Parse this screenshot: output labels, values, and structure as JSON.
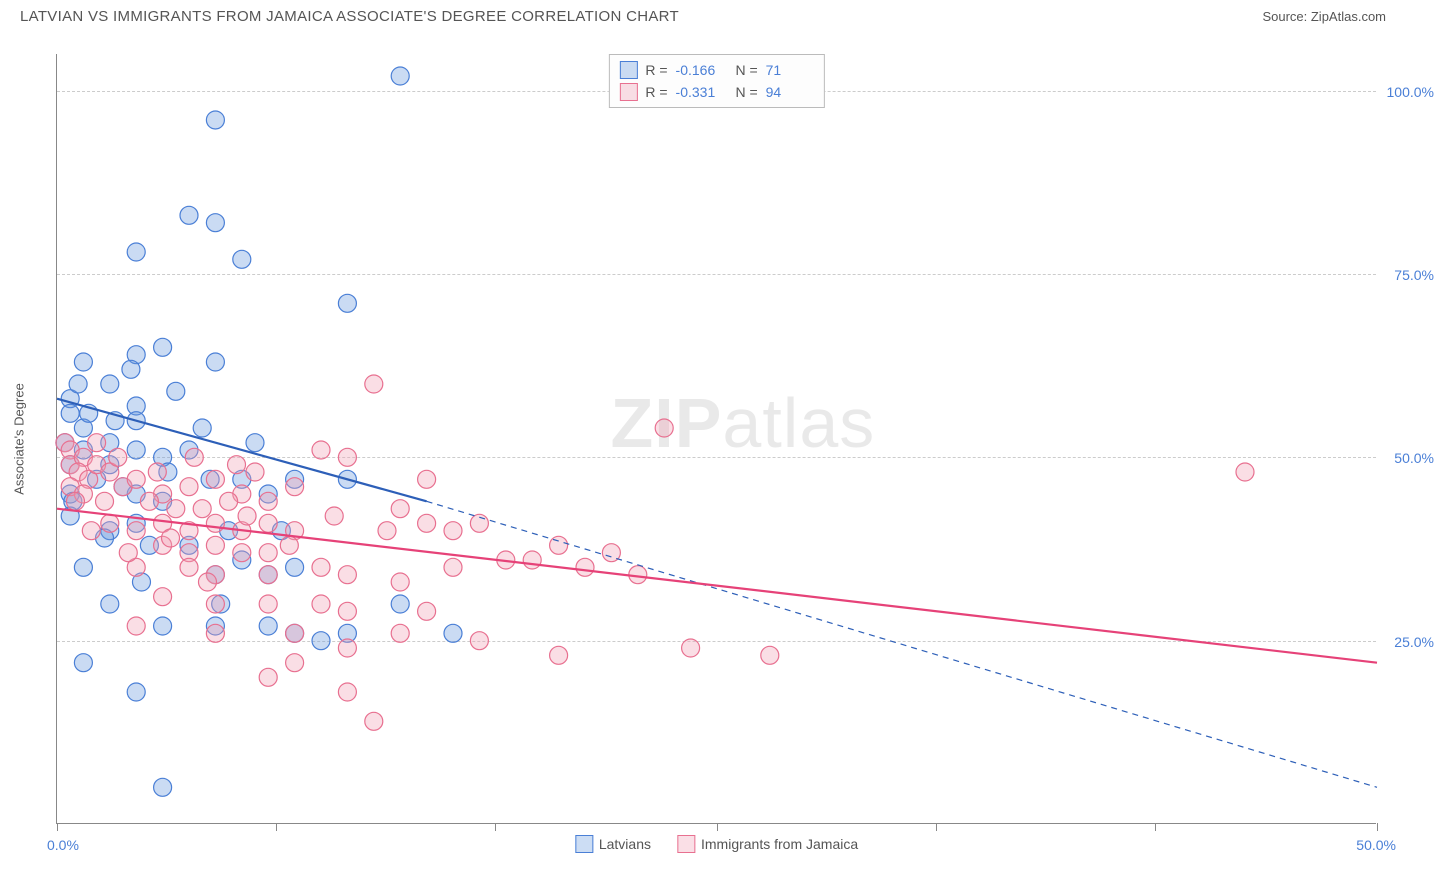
{
  "header": {
    "title": "LATVIAN VS IMMIGRANTS FROM JAMAICA ASSOCIATE'S DEGREE CORRELATION CHART",
    "source": "Source: ZipAtlas.com"
  },
  "watermark": {
    "pre": "ZIP",
    "post": "atlas"
  },
  "chart": {
    "type": "scatter",
    "background_color": "#ffffff",
    "grid_color": "#cccccc",
    "axis_color": "#888888",
    "ylabel": "Associate's Degree",
    "label_fontsize": 13,
    "xlim": [
      0,
      50
    ],
    "ylim": [
      0,
      105
    ],
    "yticks": [
      25,
      50,
      75,
      100
    ],
    "ytick_labels": [
      "25.0%",
      "50.0%",
      "75.0%",
      "100.0%"
    ],
    "xtick_positions": [
      0,
      8.3,
      16.6,
      25,
      33.3,
      41.6,
      50
    ],
    "xtick_label_left": "0.0%",
    "xtick_label_right": "50.0%",
    "tick_label_color": "#4a7fd6",
    "marker_radius": 9,
    "marker_stroke_width": 1.2,
    "marker_fill_opacity": 0.35,
    "line_width": 2.2,
    "series": [
      {
        "name": "Latvians",
        "color": "#6699dd",
        "stroke": "#4a7fd6",
        "line_color": "#2d5fb8",
        "r": "-0.166",
        "n": "71",
        "regression": {
          "x1": 0,
          "y1": 58,
          "x2": 14,
          "y2": 44,
          "dash_x2": 50,
          "dash_y2": 5
        },
        "points": [
          [
            13,
            102
          ],
          [
            6,
            96
          ],
          [
            5,
            83
          ],
          [
            6,
            82
          ],
          [
            3,
            78
          ],
          [
            7,
            77
          ],
          [
            11,
            71
          ],
          [
            1,
            63
          ],
          [
            3,
            64
          ],
          [
            4,
            65
          ],
          [
            6,
            63
          ],
          [
            2,
            60
          ],
          [
            0.5,
            58
          ],
          [
            0.5,
            56
          ],
          [
            3,
            57
          ],
          [
            1,
            54
          ],
          [
            3,
            55
          ],
          [
            1,
            51
          ],
          [
            3,
            51
          ],
          [
            5,
            51
          ],
          [
            0.5,
            49
          ],
          [
            2,
            49
          ],
          [
            7,
            47
          ],
          [
            9,
            47
          ],
          [
            0.5,
            45
          ],
          [
            3,
            45
          ],
          [
            4,
            44
          ],
          [
            8,
            45
          ],
          [
            11,
            47
          ],
          [
            2,
            40
          ],
          [
            3,
            41
          ],
          [
            5,
            38
          ],
          [
            7,
            36
          ],
          [
            1,
            35
          ],
          [
            6,
            34
          ],
          [
            8,
            34
          ],
          [
            9,
            35
          ],
          [
            2,
            30
          ],
          [
            13,
            30
          ],
          [
            4,
            27
          ],
          [
            6,
            27
          ],
          [
            8,
            27
          ],
          [
            9,
            26
          ],
          [
            11,
            26
          ],
          [
            15,
            26
          ],
          [
            1,
            22
          ],
          [
            10,
            25
          ],
          [
            3,
            18
          ],
          [
            4,
            5
          ],
          [
            0.5,
            42
          ],
          [
            4,
            50
          ],
          [
            2,
            52
          ],
          [
            0.8,
            60
          ],
          [
            2.5,
            46
          ],
          [
            5.5,
            54
          ],
          [
            1.5,
            47
          ],
          [
            3.5,
            38
          ],
          [
            6.5,
            40
          ],
          [
            0.3,
            52
          ],
          [
            1.2,
            56
          ],
          [
            2.8,
            62
          ],
          [
            4.5,
            59
          ],
          [
            5.8,
            47
          ],
          [
            7.5,
            52
          ],
          [
            0.6,
            44
          ],
          [
            1.8,
            39
          ],
          [
            3.2,
            33
          ],
          [
            4.2,
            48
          ],
          [
            2.2,
            55
          ],
          [
            8.5,
            40
          ],
          [
            6.2,
            30
          ]
        ]
      },
      {
        "name": "Immigrants from Jamaica",
        "color": "#f0a0b4",
        "stroke": "#e87090",
        "line_color": "#e64278",
        "r": "-0.331",
        "n": "94",
        "regression": {
          "x1": 0,
          "y1": 43,
          "x2": 50,
          "y2": 22
        },
        "points": [
          [
            0.3,
            52
          ],
          [
            0.5,
            51
          ],
          [
            0.5,
            49
          ],
          [
            1,
            50
          ],
          [
            0.8,
            48
          ],
          [
            1.2,
            47
          ],
          [
            0.5,
            46
          ],
          [
            1.5,
            49
          ],
          [
            2,
            48
          ],
          [
            1,
            45
          ],
          [
            2.5,
            46
          ],
          [
            3,
            47
          ],
          [
            1.8,
            44
          ],
          [
            4,
            45
          ],
          [
            5,
            46
          ],
          [
            6,
            47
          ],
          [
            7,
            45
          ],
          [
            4.5,
            43
          ],
          [
            3.5,
            44
          ],
          [
            5.5,
            43
          ],
          [
            6.5,
            44
          ],
          [
            8,
            44
          ],
          [
            9,
            46
          ],
          [
            10,
            51
          ],
          [
            11,
            50
          ],
          [
            2,
            41
          ],
          [
            3,
            40
          ],
          [
            4,
            41
          ],
          [
            5,
            40
          ],
          [
            6,
            41
          ],
          [
            7,
            40
          ],
          [
            8,
            41
          ],
          [
            4,
            38
          ],
          [
            5,
            37
          ],
          [
            6,
            38
          ],
          [
            7,
            37
          ],
          [
            8,
            37
          ],
          [
            9,
            40
          ],
          [
            3,
            35
          ],
          [
            5,
            35
          ],
          [
            6,
            34
          ],
          [
            8,
            34
          ],
          [
            10,
            35
          ],
          [
            11,
            34
          ],
          [
            13,
            43
          ],
          [
            14,
            41
          ],
          [
            15,
            40
          ],
          [
            16,
            41
          ],
          [
            17,
            36
          ],
          [
            18,
            36
          ],
          [
            14,
            47
          ],
          [
            12,
            60
          ],
          [
            23,
            54
          ],
          [
            15,
            35
          ],
          [
            19,
            38
          ],
          [
            4,
            31
          ],
          [
            6,
            30
          ],
          [
            8,
            30
          ],
          [
            10,
            30
          ],
          [
            11,
            29
          ],
          [
            13,
            33
          ],
          [
            6,
            26
          ],
          [
            9,
            26
          ],
          [
            11,
            24
          ],
          [
            13,
            26
          ],
          [
            14,
            29
          ],
          [
            16,
            25
          ],
          [
            19,
            23
          ],
          [
            20,
            35
          ],
          [
            21,
            37
          ],
          [
            22,
            34
          ],
          [
            24,
            24
          ],
          [
            27,
            23
          ],
          [
            8,
            20
          ],
          [
            11,
            18
          ],
          [
            12,
            14
          ],
          [
            3,
            27
          ],
          [
            9,
            22
          ],
          [
            7.5,
            48
          ],
          [
            45,
            48
          ],
          [
            2.3,
            50
          ],
          [
            1.5,
            52
          ],
          [
            0.7,
            44
          ],
          [
            3.8,
            48
          ],
          [
            5.2,
            50
          ],
          [
            6.8,
            49
          ],
          [
            4.3,
            39
          ],
          [
            5.7,
            33
          ],
          [
            7.2,
            42
          ],
          [
            8.8,
            38
          ],
          [
            10.5,
            42
          ],
          [
            12.5,
            40
          ],
          [
            2.7,
            37
          ],
          [
            1.3,
            40
          ]
        ]
      }
    ]
  }
}
